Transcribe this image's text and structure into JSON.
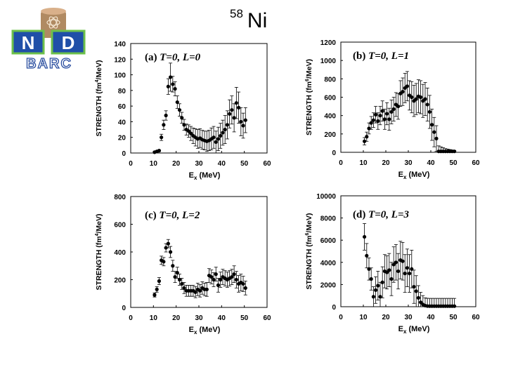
{
  "slide": {
    "isotope_mass": "58",
    "element": "Ni"
  },
  "logo": {
    "monogram_left": "N",
    "monogram_right": "D",
    "org": "BARC"
  },
  "colors": {
    "point": "#000000",
    "frame": "#000000",
    "logo_tower": "#b08a62",
    "logo_tower_top": "#d9b08a",
    "logo_blue": "#1f4fa8",
    "logo_green": "#6cc04a",
    "logo_text": "#2b4fa0"
  },
  "chart_data": [
    {
      "type": "scatter",
      "panel": "a",
      "label": {
        "prefix": "(a) ",
        "text": "T=0, L=0"
      },
      "xlabel": {
        "main": "E",
        "sub": "x",
        "rest": " (MeV)"
      },
      "ylabel": {
        "pre": "STRENGTH (fm",
        "sup": "4",
        "post": "/MeV)"
      },
      "xlim": [
        0,
        60
      ],
      "ylim": [
        0,
        140
      ],
      "xticks": [
        0,
        10,
        20,
        30,
        40,
        50,
        60
      ],
      "yticks": [
        0,
        20,
        40,
        60,
        80,
        100,
        120,
        140
      ],
      "points": [
        {
          "x": 10.5,
          "y": 1,
          "err": 1
        },
        {
          "x": 11.5,
          "y": 2,
          "err": 1
        },
        {
          "x": 12.5,
          "y": 3,
          "err": 1
        },
        {
          "x": 13.5,
          "y": 20,
          "err": 4
        },
        {
          "x": 14.5,
          "y": 36,
          "err": 6
        },
        {
          "x": 15.5,
          "y": 48,
          "err": 6
        },
        {
          "x": 16.5,
          "y": 85,
          "err": 10
        },
        {
          "x": 17.5,
          "y": 97,
          "err": 18
        },
        {
          "x": 18.5,
          "y": 88,
          "err": 10
        },
        {
          "x": 19.5,
          "y": 82,
          "err": 9
        },
        {
          "x": 20.5,
          "y": 65,
          "err": 8
        },
        {
          "x": 21.5,
          "y": 55,
          "err": 8
        },
        {
          "x": 22.5,
          "y": 45,
          "err": 7
        },
        {
          "x": 23.5,
          "y": 36,
          "err": 7
        },
        {
          "x": 24.5,
          "y": 30,
          "err": 7
        },
        {
          "x": 25.5,
          "y": 28,
          "err": 8
        },
        {
          "x": 26.5,
          "y": 25,
          "err": 9
        },
        {
          "x": 27.5,
          "y": 22,
          "err": 10
        },
        {
          "x": 28.5,
          "y": 20,
          "err": 11
        },
        {
          "x": 29.5,
          "y": 18,
          "err": 12
        },
        {
          "x": 30.5,
          "y": 19,
          "err": 12
        },
        {
          "x": 31.5,
          "y": 17,
          "err": 12
        },
        {
          "x": 32.5,
          "y": 16,
          "err": 12
        },
        {
          "x": 33.5,
          "y": 15,
          "err": 13
        },
        {
          "x": 34.5,
          "y": 16,
          "err": 13
        },
        {
          "x": 35.5,
          "y": 18,
          "err": 14
        },
        {
          "x": 36.5,
          "y": 20,
          "err": 14
        },
        {
          "x": 37.5,
          "y": 14,
          "err": 14
        },
        {
          "x": 38.5,
          "y": 18,
          "err": 15
        },
        {
          "x": 39.5,
          "y": 22,
          "err": 16
        },
        {
          "x": 40.5,
          "y": 26,
          "err": 16
        },
        {
          "x": 41.5,
          "y": 30,
          "err": 18
        },
        {
          "x": 42.5,
          "y": 36,
          "err": 18
        },
        {
          "x": 43.5,
          "y": 50,
          "err": 18
        },
        {
          "x": 44.5,
          "y": 55,
          "err": 18
        },
        {
          "x": 45.5,
          "y": 45,
          "err": 18
        },
        {
          "x": 46.5,
          "y": 64,
          "err": 20
        },
        {
          "x": 47.5,
          "y": 58,
          "err": 20
        },
        {
          "x": 48.5,
          "y": 40,
          "err": 18
        },
        {
          "x": 49.5,
          "y": 35,
          "err": 16
        },
        {
          "x": 50.5,
          "y": 42,
          "err": 16
        }
      ]
    },
    {
      "type": "scatter",
      "panel": "b",
      "label": {
        "prefix": "(b) ",
        "text": "T=0, L=1"
      },
      "xlabel": {
        "main": "E",
        "sub": "x",
        "rest": " (MeV)"
      },
      "ylabel": {
        "pre": "STRENGTH (fm",
        "sup": "6",
        "post": "/MeV)"
      },
      "xlim": [
        0,
        60
      ],
      "ylim": [
        0,
        1200
      ],
      "xticks": [
        0,
        10,
        20,
        30,
        40,
        50,
        60
      ],
      "yticks": [
        0,
        200,
        400,
        600,
        800,
        1000,
        1200
      ],
      "points": [
        {
          "x": 10.5,
          "y": 120,
          "err": 40
        },
        {
          "x": 11.5,
          "y": 170,
          "err": 50
        },
        {
          "x": 12.5,
          "y": 260,
          "err": 60
        },
        {
          "x": 13.5,
          "y": 320,
          "err": 70
        },
        {
          "x": 14.5,
          "y": 350,
          "err": 80
        },
        {
          "x": 15.5,
          "y": 410,
          "err": 90
        },
        {
          "x": 16.5,
          "y": 340,
          "err": 90
        },
        {
          "x": 17.5,
          "y": 400,
          "err": 100
        },
        {
          "x": 18.5,
          "y": 450,
          "err": 110
        },
        {
          "x": 19.5,
          "y": 360,
          "err": 110
        },
        {
          "x": 20.5,
          "y": 420,
          "err": 120
        },
        {
          "x": 21.5,
          "y": 360,
          "err": 120
        },
        {
          "x": 22.5,
          "y": 440,
          "err": 130
        },
        {
          "x": 23.5,
          "y": 470,
          "err": 130
        },
        {
          "x": 24.5,
          "y": 520,
          "err": 130
        },
        {
          "x": 25.5,
          "y": 500,
          "err": 140
        },
        {
          "x": 26.5,
          "y": 640,
          "err": 140
        },
        {
          "x": 27.5,
          "y": 660,
          "err": 150
        },
        {
          "x": 28.5,
          "y": 700,
          "err": 160
        },
        {
          "x": 29.5,
          "y": 720,
          "err": 160
        },
        {
          "x": 30.5,
          "y": 620,
          "err": 160
        },
        {
          "x": 31.5,
          "y": 600,
          "err": 170
        },
        {
          "x": 32.5,
          "y": 560,
          "err": 170
        },
        {
          "x": 33.5,
          "y": 580,
          "err": 170
        },
        {
          "x": 34.5,
          "y": 610,
          "err": 180
        },
        {
          "x": 35.5,
          "y": 600,
          "err": 180
        },
        {
          "x": 36.5,
          "y": 560,
          "err": 180
        },
        {
          "x": 37.5,
          "y": 580,
          "err": 180
        },
        {
          "x": 38.5,
          "y": 520,
          "err": 180
        },
        {
          "x": 39.5,
          "y": 440,
          "err": 180
        },
        {
          "x": 40.5,
          "y": 300,
          "err": 170
        },
        {
          "x": 41.5,
          "y": 220,
          "err": 160
        },
        {
          "x": 42.5,
          "y": 150,
          "err": 140
        },
        {
          "x": 43.5,
          "y": 10,
          "err": 60
        },
        {
          "x": 44.5,
          "y": 10,
          "err": 50
        },
        {
          "x": 45.5,
          "y": 10,
          "err": 40
        },
        {
          "x": 46.5,
          "y": 10,
          "err": 30
        },
        {
          "x": 47.5,
          "y": 10,
          "err": 25
        },
        {
          "x": 48.5,
          "y": 10,
          "err": 20
        },
        {
          "x": 49.5,
          "y": 10,
          "err": 15
        },
        {
          "x": 50.5,
          "y": 10,
          "err": 10
        }
      ]
    },
    {
      "type": "scatter",
      "panel": "c",
      "label": {
        "prefix": "(c) ",
        "text": "T=0, L=2"
      },
      "xlabel": {
        "main": "E",
        "sub": "x",
        "rest": " (MeV)"
      },
      "ylabel": {
        "pre": "STRENGTH (fm",
        "sup": "4",
        "post": "/MeV)"
      },
      "xlim": [
        0,
        60
      ],
      "ylim": [
        0,
        800
      ],
      "xticks": [
        0,
        10,
        20,
        30,
        40,
        50,
        60
      ],
      "yticks": [
        0,
        200,
        400,
        600,
        800
      ],
      "points": [
        {
          "x": 10.5,
          "y": 90,
          "err": 15
        },
        {
          "x": 11.5,
          "y": 130,
          "err": 20
        },
        {
          "x": 12.5,
          "y": 190,
          "err": 25
        },
        {
          "x": 13.5,
          "y": 340,
          "err": 30
        },
        {
          "x": 14.5,
          "y": 330,
          "err": 30
        },
        {
          "x": 15.5,
          "y": 430,
          "err": 30
        },
        {
          "x": 16.5,
          "y": 460,
          "err": 30
        },
        {
          "x": 17.5,
          "y": 400,
          "err": 40
        },
        {
          "x": 18.5,
          "y": 300,
          "err": 40
        },
        {
          "x": 19.5,
          "y": 220,
          "err": 40
        },
        {
          "x": 20.5,
          "y": 250,
          "err": 40
        },
        {
          "x": 21.5,
          "y": 200,
          "err": 40
        },
        {
          "x": 22.5,
          "y": 170,
          "err": 40
        },
        {
          "x": 23.5,
          "y": 140,
          "err": 40
        },
        {
          "x": 24.5,
          "y": 120,
          "err": 40
        },
        {
          "x": 25.5,
          "y": 120,
          "err": 40
        },
        {
          "x": 26.5,
          "y": 120,
          "err": 40
        },
        {
          "x": 27.5,
          "y": 120,
          "err": 40
        },
        {
          "x": 28.5,
          "y": 110,
          "err": 40
        },
        {
          "x": 29.5,
          "y": 130,
          "err": 45
        },
        {
          "x": 30.5,
          "y": 120,
          "err": 45
        },
        {
          "x": 31.5,
          "y": 140,
          "err": 45
        },
        {
          "x": 32.5,
          "y": 130,
          "err": 45
        },
        {
          "x": 33.5,
          "y": 130,
          "err": 50
        },
        {
          "x": 34.5,
          "y": 230,
          "err": 50
        },
        {
          "x": 35.5,
          "y": 220,
          "err": 50
        },
        {
          "x": 36.5,
          "y": 200,
          "err": 50
        },
        {
          "x": 37.5,
          "y": 240,
          "err": 50
        },
        {
          "x": 38.5,
          "y": 160,
          "err": 50
        },
        {
          "x": 39.5,
          "y": 200,
          "err": 55
        },
        {
          "x": 40.5,
          "y": 220,
          "err": 55
        },
        {
          "x": 41.5,
          "y": 210,
          "err": 55
        },
        {
          "x": 42.5,
          "y": 200,
          "err": 55
        },
        {
          "x": 43.5,
          "y": 210,
          "err": 55
        },
        {
          "x": 44.5,
          "y": 220,
          "err": 55
        },
        {
          "x": 45.5,
          "y": 240,
          "err": 60
        },
        {
          "x": 46.5,
          "y": 200,
          "err": 60
        },
        {
          "x": 47.5,
          "y": 170,
          "err": 60
        },
        {
          "x": 48.5,
          "y": 180,
          "err": 60
        },
        {
          "x": 49.5,
          "y": 170,
          "err": 55
        },
        {
          "x": 50.5,
          "y": 140,
          "err": 50
        }
      ]
    },
    {
      "type": "scatter",
      "panel": "d",
      "label": {
        "prefix": "(d) ",
        "text": "T=0, L=3"
      },
      "xlabel": {
        "main": "E",
        "sub": "x",
        "rest": " (MeV)"
      },
      "ylabel": {
        "pre": "STRENGTH (fm",
        "sup": "6",
        "post": "/MeV)"
      },
      "xlim": [
        0,
        60
      ],
      "ylim": [
        0,
        10000
      ],
      "xticks": [
        0,
        10,
        20,
        30,
        40,
        50,
        60
      ],
      "yticks": [
        0,
        2000,
        4000,
        6000,
        8000,
        10000
      ],
      "points": [
        {
          "x": 10.5,
          "y": 6300,
          "err": 1200
        },
        {
          "x": 11.5,
          "y": 4600,
          "err": 1100
        },
        {
          "x": 12.5,
          "y": 3400,
          "err": 1000
        },
        {
          "x": 13.5,
          "y": 2500,
          "err": 1000
        },
        {
          "x": 14.5,
          "y": 900,
          "err": 900
        },
        {
          "x": 15.5,
          "y": 1500,
          "err": 1200
        },
        {
          "x": 16.5,
          "y": 1900,
          "err": 1300
        },
        {
          "x": 17.5,
          "y": 900,
          "err": 1300
        },
        {
          "x": 18.5,
          "y": 2200,
          "err": 1400
        },
        {
          "x": 19.5,
          "y": 3200,
          "err": 1500
        },
        {
          "x": 20.5,
          "y": 3100,
          "err": 1500
        },
        {
          "x": 21.5,
          "y": 3300,
          "err": 1500
        },
        {
          "x": 22.5,
          "y": 2500,
          "err": 1500
        },
        {
          "x": 23.5,
          "y": 3800,
          "err": 1600
        },
        {
          "x": 24.5,
          "y": 4000,
          "err": 1600
        },
        {
          "x": 25.5,
          "y": 3200,
          "err": 1600
        },
        {
          "x": 26.5,
          "y": 4200,
          "err": 1700
        },
        {
          "x": 27.5,
          "y": 4100,
          "err": 1700
        },
        {
          "x": 28.5,
          "y": 3000,
          "err": 1700
        },
        {
          "x": 29.5,
          "y": 3500,
          "err": 1700
        },
        {
          "x": 30.5,
          "y": 3000,
          "err": 1700
        },
        {
          "x": 31.5,
          "y": 3400,
          "err": 1700
        },
        {
          "x": 32.5,
          "y": 1800,
          "err": 1500
        },
        {
          "x": 33.5,
          "y": 1400,
          "err": 1400
        },
        {
          "x": 34.5,
          "y": 800,
          "err": 1100
        },
        {
          "x": 35.5,
          "y": 400,
          "err": 900
        },
        {
          "x": 36.5,
          "y": 200,
          "err": 800
        },
        {
          "x": 37.5,
          "y": 100,
          "err": 700
        },
        {
          "x": 38.5,
          "y": 60,
          "err": 700
        },
        {
          "x": 39.5,
          "y": 50,
          "err": 700
        },
        {
          "x": 40.5,
          "y": 50,
          "err": 700
        },
        {
          "x": 41.5,
          "y": 50,
          "err": 700
        },
        {
          "x": 42.5,
          "y": 50,
          "err": 700
        },
        {
          "x": 43.5,
          "y": 50,
          "err": 700
        },
        {
          "x": 44.5,
          "y": 50,
          "err": 700
        },
        {
          "x": 45.5,
          "y": 50,
          "err": 700
        },
        {
          "x": 46.5,
          "y": 50,
          "err": 700
        },
        {
          "x": 47.5,
          "y": 50,
          "err": 700
        },
        {
          "x": 48.5,
          "y": 50,
          "err": 700
        },
        {
          "x": 49.5,
          "y": 50,
          "err": 700
        },
        {
          "x": 50.5,
          "y": 50,
          "err": 700
        }
      ]
    }
  ]
}
